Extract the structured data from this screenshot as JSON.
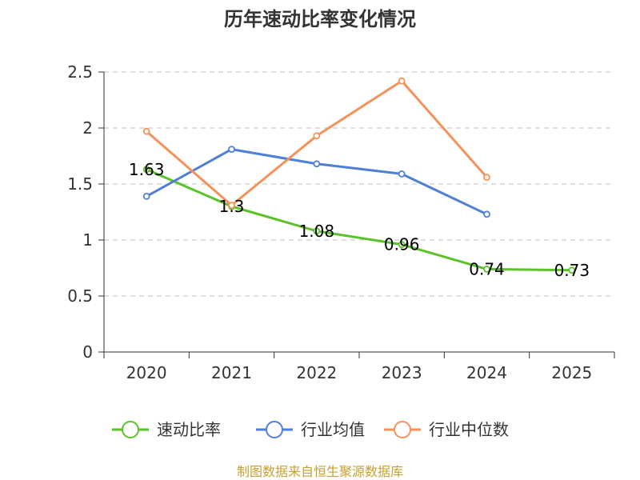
{
  "chart_data": {
    "type": "line",
    "title": "历年速动比率变化情况",
    "categories": [
      "2020",
      "2021",
      "2022",
      "2023",
      "2024",
      "2025"
    ],
    "ylim": [
      0,
      2.5
    ],
    "yticks": [
      "0",
      "0.5",
      "1",
      "1.5",
      "2",
      "2.5"
    ],
    "grid": true,
    "legend_position": "bottom",
    "series": [
      {
        "name": "速动比率",
        "color": "#5cc22a",
        "values": [
          1.63,
          1.3,
          1.08,
          0.96,
          0.74,
          0.73
        ],
        "labels": [
          "1.63",
          "1.3",
          "1.08",
          "0.96",
          "0.74",
          "0.73"
        ]
      },
      {
        "name": "行业均值",
        "color": "#4f7fd8",
        "values": [
          1.39,
          1.81,
          1.68,
          1.59,
          1.23,
          null
        ]
      },
      {
        "name": "行业中位数",
        "color": "#f5925a",
        "values": [
          1.97,
          1.31,
          1.93,
          2.42,
          1.56,
          null
        ]
      }
    ]
  },
  "footer": "制图数据来自恒生聚源数据库"
}
